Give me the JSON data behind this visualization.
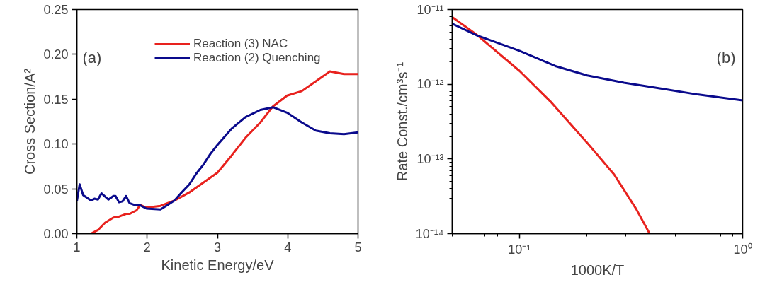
{
  "chart_data": [
    {
      "type": "line",
      "xlabel": "Kinetic Energy/eV",
      "ylabel": "Cross Section/A²",
      "annotations": [
        "(a)"
      ],
      "xlim": [
        1,
        5
      ],
      "ylim": [
        0,
        0.25
      ],
      "xticks": [
        1,
        2,
        3,
        4,
        5
      ],
      "yticks": [
        {
          "value": 0,
          "label": "0.00"
        },
        {
          "value": 0.05,
          "label": "0.05"
        },
        {
          "value": 0.1,
          "label": "0.10"
        },
        {
          "value": 0.15,
          "label": "0.15"
        },
        {
          "value": 0.2,
          "label": "0.20"
        },
        {
          "value": 0.25,
          "label": "0.25"
        }
      ],
      "grid": false,
      "legend": "top",
      "marker": "none",
      "line_style": "solid",
      "series": [
        {
          "name": "Reaction (3) NAC",
          "color": "#e8221e",
          "x": [
            1,
            1.2,
            1.3,
            1.4,
            1.52,
            1.6,
            1.7,
            1.75,
            1.85,
            1.9,
            1.99,
            2.19,
            2.39,
            2.6,
            2.8,
            3.0,
            3.2,
            3.4,
            3.61,
            3.79,
            3.99,
            4.2,
            4.4,
            4.6,
            4.8,
            5
          ],
          "values": [
            0,
            0,
            0.004,
            0.012,
            0.018,
            0.019,
            0.022,
            0.022,
            0.026,
            0.032,
            0.029,
            0.031,
            0.037,
            0.046,
            0.057,
            0.068,
            0.087,
            0.107,
            0.124,
            0.142,
            0.154,
            0.159,
            0.17,
            0.181,
            0.178,
            0.178
          ]
        },
        {
          "name": "Reaction (2) Quenching",
          "color": "#0a0a8c",
          "x": [
            1,
            1.04,
            1.09,
            1.2,
            1.25,
            1.3,
            1.35,
            1.45,
            1.52,
            1.55,
            1.6,
            1.65,
            1.7,
            1.75,
            1.82,
            1.89,
            1.99,
            2.19,
            2.29,
            2.39,
            2.49,
            2.6,
            2.7,
            2.8,
            2.9,
            3.0,
            3.2,
            3.4,
            3.61,
            3.79,
            3.99,
            4.2,
            4.4,
            4.6,
            4.8,
            5
          ],
          "values": [
            0.036,
            0.055,
            0.043,
            0.037,
            0.039,
            0.038,
            0.045,
            0.038,
            0.042,
            0.042,
            0.035,
            0.036,
            0.042,
            0.034,
            0.032,
            0.032,
            0.028,
            0.027,
            0.032,
            0.037,
            0.046,
            0.055,
            0.067,
            0.077,
            0.089,
            0.099,
            0.117,
            0.13,
            0.138,
            0.141,
            0.135,
            0.124,
            0.115,
            0.112,
            0.111,
            0.113
          ]
        }
      ]
    },
    {
      "type": "line",
      "xlabel": "1000K/T",
      "ylabel": "Rate Const./cm³s⁻¹",
      "annotations": [
        "(b)"
      ],
      "log": "xy",
      "xlim": [
        0.05,
        1
      ],
      "ylim": [
        1e-14,
        1e-11
      ],
      "xticks": [
        {
          "value": 0.1,
          "label": "10⁻¹"
        },
        {
          "value": 1,
          "label": "10⁰"
        }
      ],
      "yticks": [
        {
          "value": 1e-14,
          "label": "10⁻¹⁴"
        },
        {
          "value": 1e-13,
          "label": "10⁻¹³"
        },
        {
          "value": 1e-12,
          "label": "10⁻¹²"
        },
        {
          "value": 1e-11,
          "label": "10⁻¹¹"
        }
      ],
      "grid": false,
      "marker": "none",
      "line_style": "solid",
      "series": [
        {
          "color": "#e8221e",
          "x": [
            0.05,
            0.0646,
            0.1,
            0.1377,
            0.2013,
            0.2655,
            0.333,
            0.383
          ],
          "values": [
            7.9e-12,
            4.56e-12,
            1.51e-12,
            5.87e-13,
            1.64e-13,
            6.2e-14,
            2.15e-14,
            1e-14
          ]
        },
        {
          "color": "#0a0a8c",
          "x": [
            0.05,
            0.0646,
            0.1,
            0.145,
            0.2013,
            0.294,
            0.43,
            0.627,
            1
          ],
          "values": [
            6.47e-12,
            4.5e-12,
            2.8e-12,
            1.75e-12,
            1.31e-12,
            1.05e-12,
            8.75e-13,
            7.3e-13,
            6.08e-13
          ]
        }
      ]
    }
  ]
}
